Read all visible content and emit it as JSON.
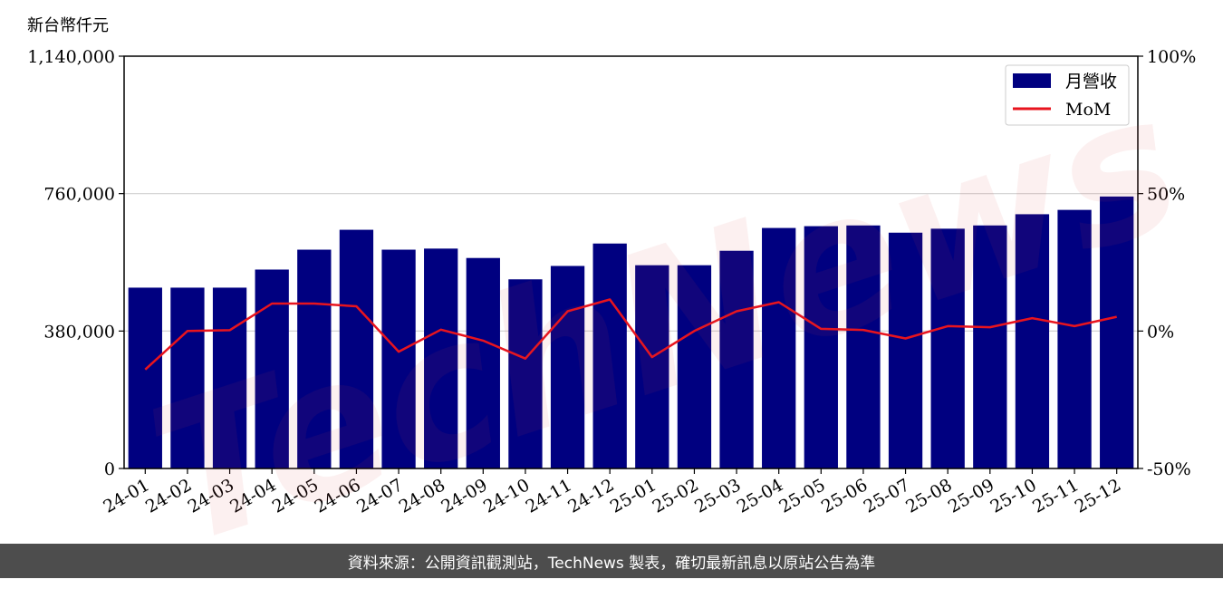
{
  "unit_label": "新台幣仟元",
  "footer": "資料來源：公開資訊觀測站，TechNews 製表，確切最新訊息以原站公告為準",
  "watermark": "TechNews",
  "colors": {
    "bar": "#000080",
    "line": "#e8141e",
    "grid": "#d0d0d0"
  },
  "chart_data": {
    "type": "bar",
    "categories": [
      "24-01",
      "24-02",
      "24-03",
      "24-04",
      "24-05",
      "24-06",
      "24-07",
      "24-08",
      "24-09",
      "24-10",
      "24-11",
      "24-12",
      "25-01",
      "25-02",
      "25-03",
      "25-04",
      "25-05",
      "25-06",
      "25-07",
      "25-08",
      "25-09",
      "25-10",
      "25-11",
      "25-12"
    ],
    "series": [
      {
        "name": "月營收",
        "type": "bar",
        "axis": "left",
        "values": [
          500000,
          500000,
          500000,
          550000,
          605000,
          660000,
          605000,
          608000,
          582000,
          523000,
          560000,
          622000,
          562000,
          562000,
          602000,
          665000,
          670000,
          672000,
          652000,
          663000,
          672000,
          703000,
          715000,
          752000
        ]
      },
      {
        "name": "MoM",
        "type": "line",
        "axis": "right",
        "values": [
          -14,
          0,
          0.3,
          10,
          10,
          9,
          -7.5,
          0.5,
          -3.5,
          -10,
          7.2,
          11.5,
          -9.5,
          0,
          7.2,
          10.5,
          0.8,
          0.4,
          -2.7,
          1.8,
          1.4,
          4.7,
          1.8,
          5.2
        ]
      }
    ],
    "yleft": {
      "ticks": [
        0,
        380000,
        760000,
        1140000
      ],
      "tick_labels": [
        "0",
        "380,000",
        "760,000",
        "1,140,000"
      ],
      "lim": [
        0,
        1140000
      ]
    },
    "yright": {
      "ticks": [
        -50,
        0,
        50,
        100
      ],
      "tick_labels": [
        "-50%",
        "0%",
        "50%",
        "100%"
      ],
      "lim": [
        -50,
        100
      ]
    },
    "grid": true,
    "legend": "top-right"
  }
}
